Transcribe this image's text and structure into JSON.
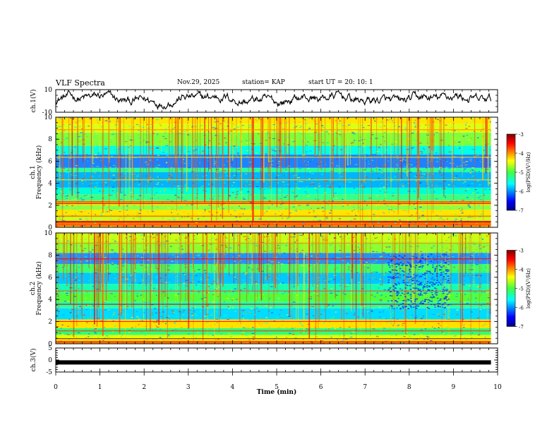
{
  "header": {
    "title": "VLF Spectra",
    "date": "Nov.29, 2025",
    "station": "station= KAP",
    "start_ut": "start  UT  =   20: 10: 1"
  },
  "chart_data": [
    {
      "type": "line",
      "panel": "ch1-waveform",
      "ylabel": "ch.1(V)",
      "ylim": [
        -10,
        10
      ],
      "yticks": [
        -10,
        10
      ],
      "ytick_labels": [
        "-10",
        "10"
      ],
      "xlim": [
        0,
        10
      ],
      "description_values": "noisy waveform oscillating roughly between -5 and 8 V"
    },
    {
      "type": "heatmap",
      "panel": "ch1-spectrogram",
      "ylabel_line1": "ch.1",
      "ylabel_line2": "Frequency (kHz)",
      "ylim": [
        0,
        10
      ],
      "yticks": [
        0,
        2,
        4,
        6,
        8,
        10
      ],
      "ytick_labels": [
        "0",
        "2",
        "4",
        "6",
        "8",
        "10"
      ],
      "xlim": [
        0,
        10
      ],
      "colorbar": {
        "label": "log(PSD)(V²/Hz)",
        "range": [
          -7,
          -3
        ],
        "ticks": [
          "-3",
          "-4",
          "-5",
          "-6",
          "-7"
        ]
      }
    },
    {
      "type": "heatmap",
      "panel": "ch2-spectrogram",
      "ylabel_line1": "ch.2",
      "ylabel_line2": "Frequency (kHz)",
      "ylim": [
        0,
        10
      ],
      "yticks": [
        0,
        2,
        4,
        6,
        8,
        10
      ],
      "ytick_labels": [
        "0",
        "2",
        "4",
        "6",
        "8",
        "10"
      ],
      "xlim": [
        0,
        10
      ],
      "colorbar": {
        "label": "log(PSD)(V²/Hz)",
        "range": [
          -7,
          -3
        ],
        "ticks": [
          "-3",
          "-4",
          "-5",
          "-6",
          "-7"
        ]
      }
    },
    {
      "type": "line",
      "panel": "ch3-waveform",
      "ylabel": "ch.3(V)",
      "ylim": [
        -5,
        5
      ],
      "yticks": [
        -5,
        0,
        5
      ],
      "ytick_labels": [
        "-5",
        "0",
        "5"
      ],
      "level": -1,
      "xlim": [
        0,
        10
      ],
      "xlabel": "Time  (min)",
      "xticks": [
        0,
        1,
        2,
        3,
        4,
        5,
        6,
        7,
        8,
        9,
        10
      ],
      "xtick_labels": [
        "0",
        "1",
        "2",
        "3",
        "4",
        "5",
        "6",
        "7",
        "8",
        "9",
        "10"
      ]
    }
  ]
}
